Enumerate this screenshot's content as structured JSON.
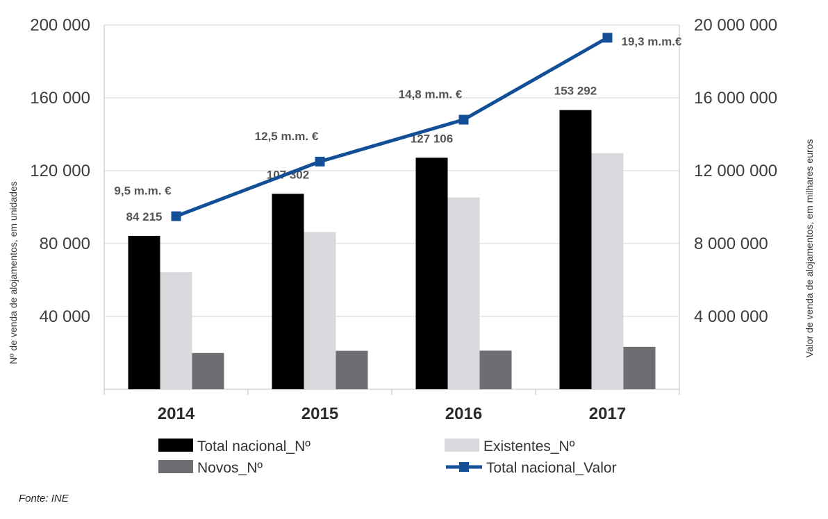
{
  "chart_data": {
    "type": "bar",
    "categories": [
      "2014",
      "2015",
      "2016",
      "2017"
    ],
    "series": [
      {
        "name": "Total nacional_Nº",
        "kind": "bar",
        "axis": "left",
        "color": "#000000",
        "values": [
          84215,
          107302,
          127106,
          153292
        ],
        "labels": [
          "84 215",
          "107 302",
          "127 106",
          "153 292"
        ]
      },
      {
        "name": "Existentes_Nº",
        "kind": "bar",
        "axis": "left",
        "color": "#d9d9dd",
        "values": [
          64300,
          86300,
          105300,
          129600
        ]
      },
      {
        "name": "Novos_Nº",
        "kind": "bar",
        "axis": "left",
        "color": "#6d6d72",
        "values": [
          19900,
          21100,
          21200,
          23300
        ]
      },
      {
        "name": "Total nacional_Valor",
        "kind": "line",
        "axis": "right",
        "color": "#134f96",
        "values": [
          9500000,
          12500000,
          14800000,
          19300000
        ],
        "labels": [
          "9,5 m.m. €",
          "12,5 m.m. €",
          "14,8 m.m. €",
          "19,3 m.m.€"
        ]
      }
    ],
    "y_left": {
      "label": "Nº de venda de alojamentos, em unidades",
      "lim": [
        0,
        200000
      ],
      "ticks": [
        40000,
        80000,
        120000,
        160000,
        200000
      ],
      "tick_labels": [
        "40 000",
        "80 000",
        "120 000",
        "160 000",
        "200 000"
      ]
    },
    "y_right": {
      "label": "Valor de venda de alojamentos, em milhares  euros",
      "lim": [
        0,
        20000000
      ],
      "ticks": [
        4000000,
        8000000,
        12000000,
        16000000,
        20000000
      ],
      "tick_labels": [
        "4 000 000",
        "8 000 000",
        "12 000 000",
        "16 000 000",
        "20 000 000"
      ]
    },
    "grid": true,
    "legend_position": "bottom"
  },
  "legend": [
    "Total nacional_Nº",
    "Existentes_Nº",
    "Novos_Nº",
    "Total nacional_Valor"
  ],
  "source": "Fonte: INE"
}
